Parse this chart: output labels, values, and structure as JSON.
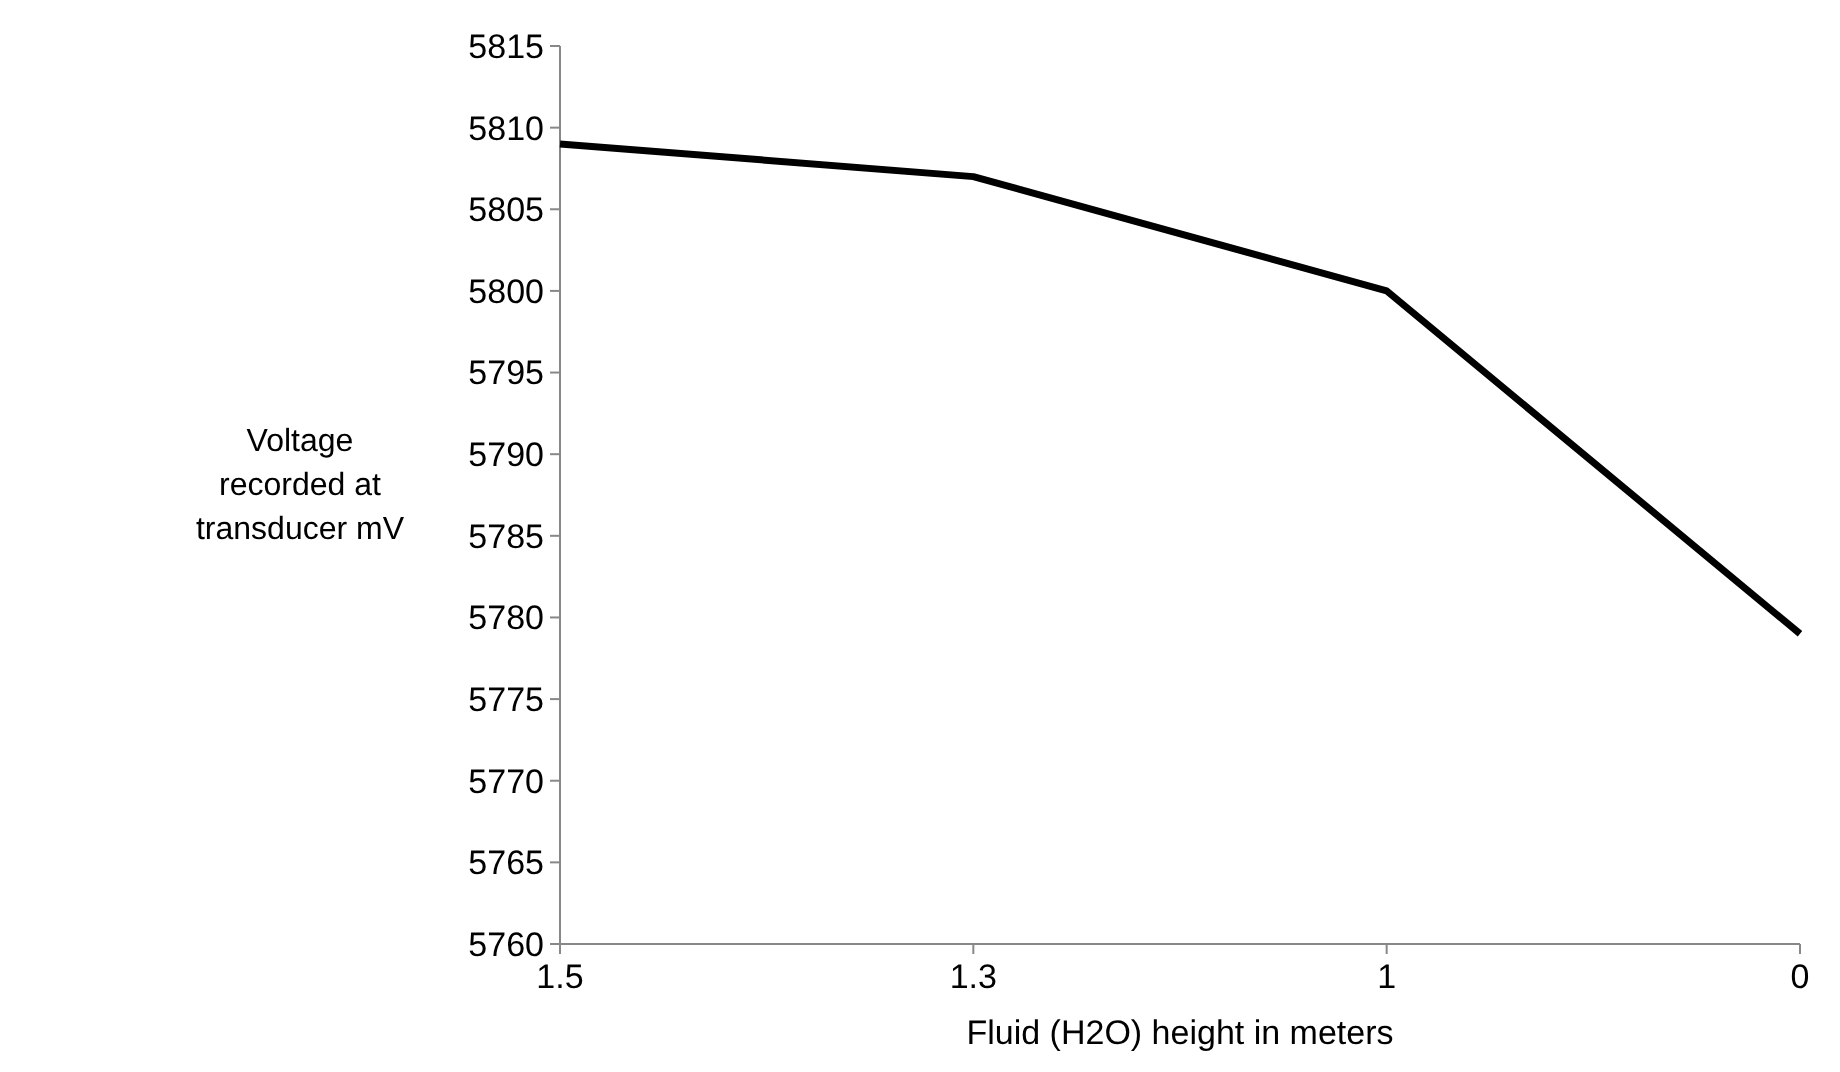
{
  "chart_data": {
    "type": "line",
    "xlabel": "Fluid (H2O) height in meters",
    "ylabel": "Voltage recorded at transducer mV",
    "categories": [
      "1.5",
      "1.3",
      "1",
      "0"
    ],
    "series": [
      {
        "color": "#000000",
        "values": [
          5809,
          5807,
          5800,
          5779
        ]
      }
    ],
    "ylim": [
      5760,
      5815
    ],
    "yticks": [
      5760,
      5765,
      5770,
      5775,
      5780,
      5785,
      5790,
      5795,
      5800,
      5805,
      5810,
      5815
    ],
    "grid": false,
    "marker": "none",
    "line_style": "solid"
  }
}
